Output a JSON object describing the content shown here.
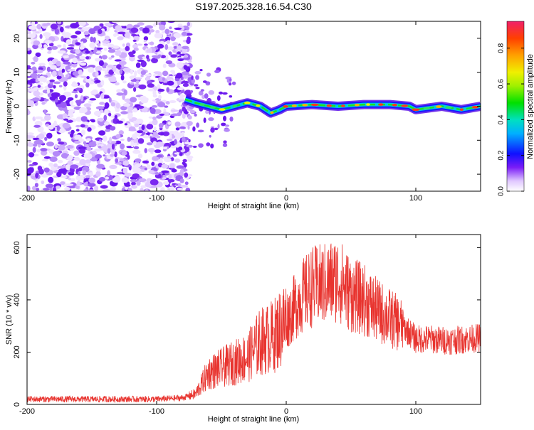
{
  "figure_title": "S197.2025.328.16.54.C30",
  "colors": {
    "snr_line": "#e8342f",
    "low_spectral": "#6b24f0",
    "axis": "#000000"
  },
  "chart_data": [
    {
      "type": "heatmap",
      "title": "S197.2025.328.16.54.C30",
      "xlabel": "Height of straight line (km)",
      "ylabel": "Frequency (Hz)",
      "xlim": [
        -200,
        150
      ],
      "ylim": [
        -25,
        25
      ],
      "xticks": [
        -200,
        -100,
        0,
        100
      ],
      "yticks": [
        -20,
        -10,
        0,
        10,
        20
      ],
      "xtick_labels": [
        "-200",
        "-100",
        "0",
        "100"
      ],
      "ytick_labels": [
        "-20",
        "-10",
        "0",
        "10",
        "20"
      ],
      "noise_region_x": [
        -200,
        -78
      ],
      "signal_track": [
        {
          "x": -78,
          "y": 2
        },
        {
          "x": -70,
          "y": 1
        },
        {
          "x": -60,
          "y": 0
        },
        {
          "x": -50,
          "y": -1
        },
        {
          "x": -40,
          "y": 0
        },
        {
          "x": -30,
          "y": 1
        },
        {
          "x": -20,
          "y": 0
        },
        {
          "x": -12,
          "y": -2
        },
        {
          "x": -5,
          "y": -1
        },
        {
          "x": 0,
          "y": 0
        },
        {
          "x": 20,
          "y": 0.5
        },
        {
          "x": 40,
          "y": 0
        },
        {
          "x": 60,
          "y": 0.5
        },
        {
          "x": 80,
          "y": 0.5
        },
        {
          "x": 95,
          "y": 0
        },
        {
          "x": 100,
          "y": -1
        },
        {
          "x": 120,
          "y": 0
        },
        {
          "x": 135,
          "y": -1
        },
        {
          "x": 150,
          "y": 0
        }
      ],
      "colorbar": {
        "label": "Normalized spectral amplitude",
        "range": [
          0,
          0.95
        ],
        "ticks": [
          0.0,
          0.2,
          0.4,
          0.6,
          0.8
        ],
        "tick_labels": [
          "0.0",
          "0.2",
          "0.4",
          "0.6",
          "0.8"
        ]
      }
    },
    {
      "type": "line",
      "xlabel": "Height of straight line (km)",
      "ylabel": "SNR (10 * v/v)",
      "xlim": [
        -200,
        150
      ],
      "ylim": [
        0,
        650
      ],
      "xticks": [
        -200,
        -100,
        0,
        100
      ],
      "yticks": [
        0,
        200,
        400,
        600
      ],
      "xtick_labels": [
        "-200",
        "-100",
        "0",
        "100"
      ],
      "ytick_labels": [
        "0",
        "200",
        "400",
        "600"
      ],
      "series": [
        {
          "name": "SNR",
          "envelope": [
            {
              "x": -200,
              "y": 20
            },
            {
              "x": -100,
              "y": 20
            },
            {
              "x": -80,
              "y": 25
            },
            {
              "x": -70,
              "y": 40
            },
            {
              "x": -60,
              "y": 120
            },
            {
              "x": -50,
              "y": 140
            },
            {
              "x": -40,
              "y": 160
            },
            {
              "x": -30,
              "y": 180
            },
            {
              "x": -20,
              "y": 240
            },
            {
              "x": -10,
              "y": 260
            },
            {
              "x": 0,
              "y": 320
            },
            {
              "x": 10,
              "y": 400
            },
            {
              "x": 20,
              "y": 450
            },
            {
              "x": 30,
              "y": 460
            },
            {
              "x": 40,
              "y": 480
            },
            {
              "x": 50,
              "y": 420
            },
            {
              "x": 60,
              "y": 400
            },
            {
              "x": 70,
              "y": 360
            },
            {
              "x": 80,
              "y": 330
            },
            {
              "x": 90,
              "y": 300
            },
            {
              "x": 100,
              "y": 250
            },
            {
              "x": 110,
              "y": 250
            },
            {
              "x": 120,
              "y": 245
            },
            {
              "x": 130,
              "y": 245
            },
            {
              "x": 140,
              "y": 250
            },
            {
              "x": 150,
              "y": 255
            }
          ]
        }
      ]
    }
  ]
}
